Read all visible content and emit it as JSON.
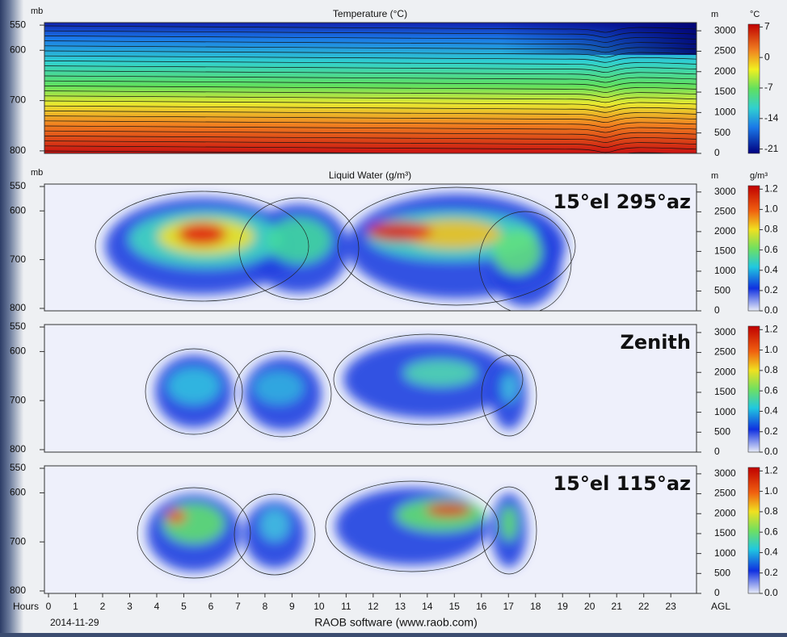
{
  "figure": {
    "panels": [
      {
        "title": "Temperature (°C)",
        "left_unit": "mb",
        "right_unit": "m",
        "colorbar_unit": "°C",
        "ylim": [
          545,
          805
        ],
        "yticks": [
          550,
          600,
          700,
          800
        ],
        "y2lim": [
          0,
          3200
        ],
        "y2ticks": [
          3000,
          2500,
          2000,
          1500,
          1000,
          500,
          0
        ],
        "clim": [
          -22,
          8
        ],
        "cticks": [
          7,
          0,
          -7,
          -14,
          -21
        ]
      },
      {
        "title": "Liquid Water (g/m³)",
        "left_unit": "mb",
        "right_unit": "m",
        "colorbar_unit": "g/m³",
        "label": "15°el 295°az",
        "ylim": [
          545,
          805
        ],
        "yticks": [
          550,
          600,
          700,
          800
        ],
        "y2lim": [
          0,
          3200
        ],
        "y2ticks": [
          3000,
          2500,
          2000,
          1500,
          1000,
          500,
          0
        ],
        "clim": [
          0,
          1.25
        ],
        "cticks": [
          {
            "value": 1.2,
            "label": "1.2"
          },
          {
            "value": 1,
            "label": "1.0"
          },
          0.8,
          0.6,
          0.4,
          0.2,
          {
            "value": 0,
            "label": "0.0"
          }
        ]
      },
      {
        "label": "Zenith",
        "ylim": [
          545,
          805
        ],
        "yticks": [
          550,
          600,
          700,
          800
        ],
        "y2lim": [
          0,
          3200
        ],
        "y2ticks": [
          3000,
          2500,
          2000,
          1500,
          1000,
          500,
          0
        ],
        "clim": [
          0,
          1.25
        ],
        "cticks": [
          {
            "value": 1.2,
            "label": "1.2"
          },
          {
            "value": 1,
            "label": "1.0"
          },
          0.8,
          0.6,
          0.4,
          0.2,
          {
            "value": 0,
            "label": "0.0"
          }
        ]
      },
      {
        "label": "15°el 115°az",
        "ylim": [
          545,
          805
        ],
        "yticks": [
          550,
          600,
          700,
          800
        ],
        "y2lim": [
          0,
          3200
        ],
        "y2ticks": [
          3000,
          2500,
          2000,
          1500,
          1000,
          500,
          0
        ],
        "clim": [
          0,
          1.25
        ],
        "cticks": [
          {
            "value": 1.2,
            "label": "1.2"
          },
          {
            "value": 1,
            "label": "1.0"
          },
          0.8,
          0.6,
          0.4,
          0.2,
          {
            "value": 0,
            "label": "0.0"
          }
        ]
      }
    ],
    "x_label": "Hours",
    "xlim": [
      -0.15,
      23.95
    ],
    "xticks": [
      0,
      1,
      2,
      3,
      4,
      5,
      6,
      7,
      8,
      9,
      10,
      11,
      12,
      13,
      14,
      15,
      16,
      17,
      18,
      19,
      20,
      21,
      22,
      23
    ],
    "right_label": "AGL",
    "date": "2014-11-29",
    "credit": "RAOB software (www.raob.com)"
  }
}
